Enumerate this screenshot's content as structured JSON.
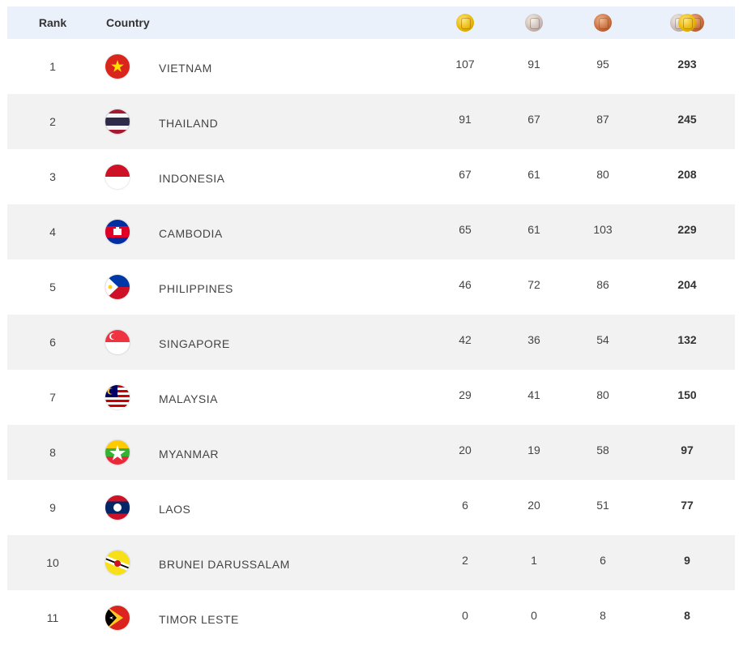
{
  "header": {
    "rank": "Rank",
    "country": "Country"
  },
  "icons": {
    "gold": "gold-medal-icon",
    "silver": "silver-medal-icon",
    "bronze": "bronze-medal-icon",
    "total": "total-medals-icon"
  },
  "rows": [
    {
      "rank": "1",
      "country": "VIETNAM",
      "gold": "107",
      "silver": "91",
      "bronze": "95",
      "total": "293"
    },
    {
      "rank": "2",
      "country": "THAILAND",
      "gold": "91",
      "silver": "67",
      "bronze": "87",
      "total": "245"
    },
    {
      "rank": "3",
      "country": "INDONESIA",
      "gold": "67",
      "silver": "61",
      "bronze": "80",
      "total": "208"
    },
    {
      "rank": "4",
      "country": "CAMBODIA",
      "gold": "65",
      "silver": "61",
      "bronze": "103",
      "total": "229"
    },
    {
      "rank": "5",
      "country": "PHILIPPINES",
      "gold": "46",
      "silver": "72",
      "bronze": "86",
      "total": "204"
    },
    {
      "rank": "6",
      "country": "SINGAPORE",
      "gold": "42",
      "silver": "36",
      "bronze": "54",
      "total": "132"
    },
    {
      "rank": "7",
      "country": "MALAYSIA",
      "gold": "29",
      "silver": "41",
      "bronze": "80",
      "total": "150"
    },
    {
      "rank": "8",
      "country": "MYANMAR",
      "gold": "20",
      "silver": "19",
      "bronze": "58",
      "total": "97"
    },
    {
      "rank": "9",
      "country": "LAOS",
      "gold": "6",
      "silver": "20",
      "bronze": "51",
      "total": "77"
    },
    {
      "rank": "10",
      "country": "BRUNEI DARUSSALAM",
      "gold": "2",
      "silver": "1",
      "bronze": "6",
      "total": "9"
    },
    {
      "rank": "11",
      "country": "TIMOR LESTE",
      "gold": "0",
      "silver": "0",
      "bronze": "8",
      "total": "8"
    }
  ]
}
